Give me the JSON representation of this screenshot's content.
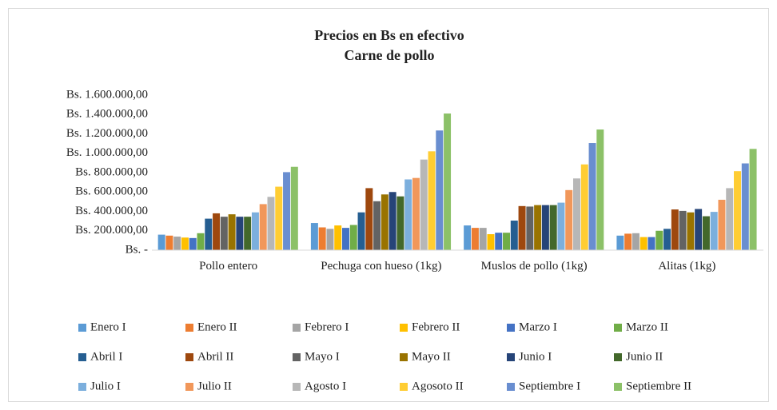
{
  "chart_data": {
    "type": "bar",
    "title": "Precios en Bs en efectivo",
    "subtitle": "Carne de pollo",
    "categories": [
      "Pollo entero",
      "Pechuga con hueso (1kg)",
      "Muslos de pollo (1kg)",
      "Alitas (1kg)"
    ],
    "series": [
      {
        "name": "Enero I",
        "color": "#5b9bd5",
        "values": [
          160000,
          280000,
          255000,
          150000
        ]
      },
      {
        "name": "Enero II",
        "color": "#ed7d31",
        "values": [
          150000,
          235000,
          230000,
          170000
        ]
      },
      {
        "name": "Febrero I",
        "color": "#a5a5a5",
        "values": [
          140000,
          220000,
          230000,
          175000
        ]
      },
      {
        "name": "Febrero II",
        "color": "#ffc000",
        "values": [
          130000,
          255000,
          165000,
          135000
        ]
      },
      {
        "name": "Marzo I",
        "color": "#4472c4",
        "values": [
          125000,
          230000,
          180000,
          135000
        ]
      },
      {
        "name": "Marzo II",
        "color": "#70ad47",
        "values": [
          175000,
          260000,
          180000,
          200000
        ]
      },
      {
        "name": "Abril I",
        "color": "#255e91",
        "values": [
          325000,
          390000,
          305000,
          220000
        ]
      },
      {
        "name": "Abril II",
        "color": "#9e480e",
        "values": [
          380000,
          640000,
          455000,
          420000
        ]
      },
      {
        "name": "Mayo I",
        "color": "#636363",
        "values": [
          345000,
          505000,
          450000,
          405000
        ]
      },
      {
        "name": "Mayo II",
        "color": "#997300",
        "values": [
          370000,
          575000,
          465000,
          390000
        ]
      },
      {
        "name": "Junio I",
        "color": "#264478",
        "values": [
          345000,
          600000,
          465000,
          425000
        ]
      },
      {
        "name": "Junio II",
        "color": "#43682b",
        "values": [
          345000,
          555000,
          465000,
          350000
        ]
      },
      {
        "name": "Julio I",
        "color": "#7cafdd",
        "values": [
          390000,
          730000,
          490000,
          395000
        ]
      },
      {
        "name": "Julio II",
        "color": "#f1975a",
        "values": [
          475000,
          745000,
          620000,
          520000
        ]
      },
      {
        "name": "Agosto I",
        "color": "#b7b7b7",
        "values": [
          550000,
          935000,
          740000,
          640000
        ]
      },
      {
        "name": "Agosoto II",
        "color": "#ffcd33",
        "values": [
          655000,
          1020000,
          885000,
          815000
        ]
      },
      {
        "name": "Septiembre I",
        "color": "#698ed0",
        "values": [
          805000,
          1235000,
          1105000,
          895000
        ]
      },
      {
        "name": "Septiembre II",
        "color": "#8cc168",
        "values": [
          860000,
          1410000,
          1245000,
          1045000
        ]
      }
    ],
    "ylim": [
      0,
      1600000
    ],
    "yticks": [
      {
        "value": 0,
        "label": "Bs. -"
      },
      {
        "value": 200000,
        "label": "Bs. 200.000,00"
      },
      {
        "value": 400000,
        "label": "Bs. 400.000,00"
      },
      {
        "value": 600000,
        "label": "Bs. 600.000,00"
      },
      {
        "value": 800000,
        "label": "Bs. 800.000,00"
      },
      {
        "value": 1000000,
        "label": "Bs. 1.000.000,00"
      },
      {
        "value": 1200000,
        "label": "Bs. 1.200.000,00"
      },
      {
        "value": 1400000,
        "label": "Bs. 1.400.000,00"
      },
      {
        "value": 1600000,
        "label": "Bs. 1.600.000,00"
      }
    ],
    "grid": false,
    "legend": "bottom"
  }
}
